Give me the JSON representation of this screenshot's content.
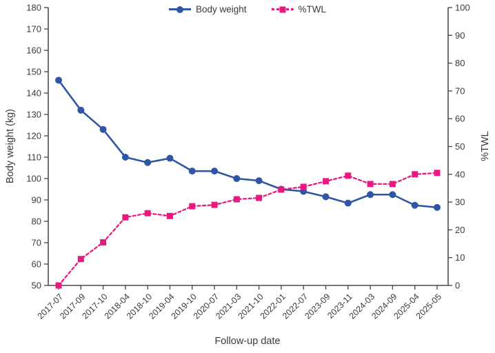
{
  "chart_data": {
    "type": "line",
    "title": "",
    "xlabel": "Follow-up date",
    "ylabel_left": "Body weight (kg)",
    "ylabel_right": "%TWL",
    "legend_position": "top",
    "grid": false,
    "categories": [
      "2017-07",
      "2017-09",
      "2017-10",
      "2018-04",
      "2018-10",
      "2019-04",
      "2019-10",
      "2020-07",
      "2021-03",
      "2021-10",
      "2022-01",
      "2022-07",
      "2023-09",
      "2023-11",
      "2024-03",
      "2024-09",
      "2025-04",
      "2025-05"
    ],
    "series": [
      {
        "name": "Body weight",
        "axis": "left",
        "color": "#2e56a5",
        "line_style": "solid",
        "marker": "circle",
        "values": [
          146,
          132,
          123,
          110,
          107.5,
          109.5,
          103.5,
          103.5,
          100,
          99,
          95,
          94,
          91.5,
          88.5,
          92.5,
          92.5,
          87.5,
          86.5
        ]
      },
      {
        "name": "%TWL",
        "axis": "right",
        "color": "#e9197f",
        "line_style": "dashed",
        "marker": "square",
        "values": [
          0,
          9.5,
          15.5,
          24.5,
          26,
          25,
          28.5,
          29,
          31,
          31.5,
          34.5,
          35.5,
          37.5,
          39.5,
          36.5,
          36.5,
          40,
          40.5
        ]
      }
    ],
    "left_axis": {
      "min": 50,
      "max": 180,
      "ticks": [
        50,
        60,
        70,
        80,
        90,
        100,
        110,
        120,
        130,
        140,
        150,
        160,
        170,
        180
      ]
    },
    "right_axis": {
      "min": 0,
      "max": 100,
      "ticks": [
        0,
        10,
        20,
        30,
        40,
        50,
        60,
        70,
        80,
        90,
        100
      ]
    }
  },
  "colors": {
    "body_weight_series": "#2e56a5",
    "twl_series": "#e9197f",
    "axis_line": "#4c4c4c",
    "text": "#3a3a3a"
  }
}
